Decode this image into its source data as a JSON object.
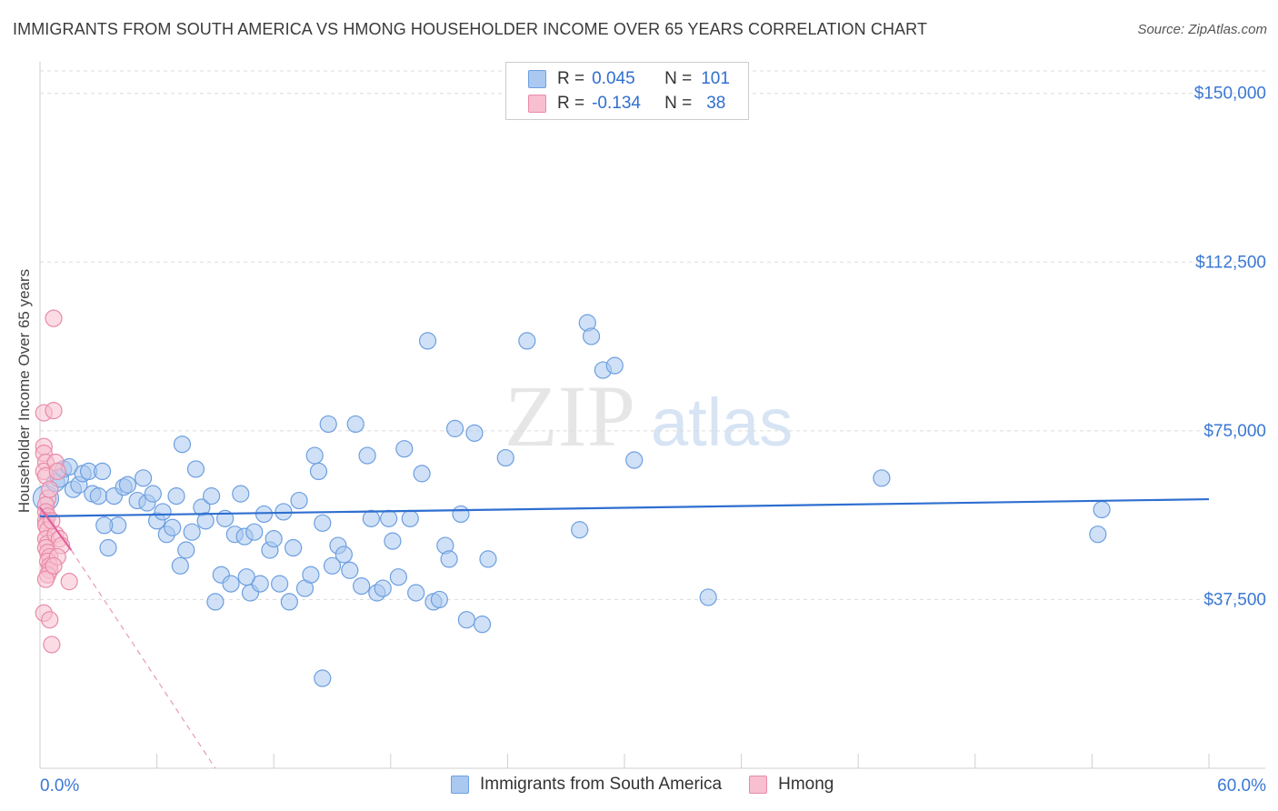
{
  "header": {
    "title": "IMMIGRANTS FROM SOUTH AMERICA VS HMONG HOUSEHOLDER INCOME OVER 65 YEARS CORRELATION CHART",
    "source": "Source: ZipAtlas.com"
  },
  "watermark": {
    "zip": "ZIP",
    "atlas": "atlas"
  },
  "legend": {
    "rows": [
      {
        "r_label": "R =",
        "r_value": "0.045",
        "n_label": "N =",
        "n_value": "101",
        "color": "#aac8f0",
        "border": "#6d9fe0"
      },
      {
        "r_label": "R =",
        "r_value": "-0.134",
        "n_label": "N =",
        "n_value": "38",
        "color": "#f7bfd0",
        "border": "#e98aa8"
      }
    ]
  },
  "bottom_legend": {
    "items": [
      {
        "label": "Immigrants from South America",
        "color": "#aac8f0",
        "border": "#6d9fe0"
      },
      {
        "label": "Hmong",
        "color": "#f7bfd0",
        "border": "#e98aa8"
      }
    ]
  },
  "chart_data": {
    "type": "scatter",
    "title": "IMMIGRANTS FROM SOUTH AMERICA VS HMONG HOUSEHOLDER INCOME OVER 65 YEARS CORRELATION CHART",
    "xlabel": "",
    "ylabel": "Householder Income Over 65 years",
    "xlim": [
      0,
      60
    ],
    "ylim": [
      0,
      155000
    ],
    "x_tick_labels": [
      "0.0%",
      "60.0%"
    ],
    "y_ticks": [
      37500,
      75000,
      112500,
      150000
    ],
    "y_tick_labels": [
      "$37,500",
      "$75,000",
      "$112,500",
      "$150,000"
    ],
    "grid": true,
    "series": [
      {
        "name": "Immigrants from South America",
        "color": "#aac8f0",
        "stroke": "#6d9fe0",
        "trend": {
          "x": [
            0,
            60
          ],
          "y": [
            56000,
            59800
          ],
          "color": "#2f6fd0",
          "style": "solid"
        },
        "points": [
          [
            0.3,
            60000,
            14
          ],
          [
            0.8,
            63500,
            10
          ],
          [
            1.0,
            64500,
            10
          ],
          [
            1.2,
            66500,
            9
          ],
          [
            1.5,
            67000,
            9
          ],
          [
            1.7,
            62000,
            9
          ],
          [
            2.0,
            63000,
            9
          ],
          [
            2.2,
            65500,
            9
          ],
          [
            2.5,
            66000,
            9
          ],
          [
            2.7,
            61000,
            9
          ],
          [
            3.0,
            60500,
            9
          ],
          [
            3.2,
            66000,
            9
          ],
          [
            3.5,
            49000,
            9
          ],
          [
            3.8,
            60500,
            9
          ],
          [
            4.0,
            54000,
            9
          ],
          [
            4.3,
            62500,
            9
          ],
          [
            4.5,
            63000,
            9
          ],
          [
            5.0,
            59500,
            9
          ],
          [
            5.3,
            64500,
            9
          ],
          [
            5.5,
            59000,
            9
          ],
          [
            5.8,
            61000,
            9
          ],
          [
            6.0,
            55000,
            9
          ],
          [
            6.3,
            57000,
            9
          ],
          [
            6.5,
            52000,
            9
          ],
          [
            6.8,
            53500,
            9
          ],
          [
            7.0,
            60500,
            9
          ],
          [
            7.3,
            72000,
            9
          ],
          [
            7.5,
            48500,
            9
          ],
          [
            7.8,
            52500,
            9
          ],
          [
            8.0,
            66500,
            9
          ],
          [
            8.3,
            58000,
            9
          ],
          [
            8.5,
            55000,
            9
          ],
          [
            8.8,
            60500,
            9
          ],
          [
            9.0,
            37000,
            9
          ],
          [
            9.3,
            43000,
            9
          ],
          [
            9.5,
            55500,
            9
          ],
          [
            9.8,
            41000,
            9
          ],
          [
            10.0,
            52000,
            9
          ],
          [
            10.3,
            61000,
            9
          ],
          [
            10.5,
            51500,
            9
          ],
          [
            10.8,
            39000,
            9
          ],
          [
            11.0,
            52500,
            9
          ],
          [
            11.3,
            41000,
            9
          ],
          [
            11.5,
            56500,
            9
          ],
          [
            11.8,
            48500,
            9
          ],
          [
            12.0,
            51000,
            9
          ],
          [
            12.3,
            41000,
            9
          ],
          [
            12.5,
            57000,
            9
          ],
          [
            12.8,
            37000,
            9
          ],
          [
            13.0,
            49000,
            9
          ],
          [
            13.3,
            59500,
            9
          ],
          [
            13.6,
            40000,
            9
          ],
          [
            13.9,
            43000,
            9
          ],
          [
            14.1,
            69500,
            9
          ],
          [
            14.3,
            66000,
            9
          ],
          [
            14.5,
            54500,
            9
          ],
          [
            14.8,
            76500,
            9
          ],
          [
            15.0,
            45000,
            9
          ],
          [
            15.3,
            49500,
            9
          ],
          [
            15.6,
            47500,
            9
          ],
          [
            15.9,
            44000,
            9
          ],
          [
            16.2,
            76500,
            9
          ],
          [
            16.5,
            40500,
            9
          ],
          [
            16.8,
            69500,
            9
          ],
          [
            17.0,
            55500,
            9
          ],
          [
            17.3,
            39000,
            9
          ],
          [
            17.6,
            40000,
            9
          ],
          [
            17.9,
            55500,
            9
          ],
          [
            18.1,
            50500,
            9
          ],
          [
            18.4,
            42500,
            9
          ],
          [
            18.7,
            71000,
            9
          ],
          [
            19.0,
            55500,
            9
          ],
          [
            19.3,
            39000,
            9
          ],
          [
            19.6,
            65500,
            9
          ],
          [
            19.9,
            95000,
            9
          ],
          [
            20.2,
            37000,
            9
          ],
          [
            20.5,
            37500,
            9
          ],
          [
            20.8,
            49500,
            9
          ],
          [
            21.0,
            46500,
            9
          ],
          [
            21.3,
            75500,
            9
          ],
          [
            21.6,
            56500,
            9
          ],
          [
            21.9,
            33000,
            9
          ],
          [
            22.3,
            74500,
            9
          ],
          [
            22.7,
            32000,
            9
          ],
          [
            23.0,
            46500,
            9
          ],
          [
            14.5,
            20000,
            9
          ],
          [
            25.0,
            95000,
            9
          ],
          [
            28.1,
            99000,
            9
          ],
          [
            28.3,
            96000,
            9
          ],
          [
            28.9,
            88500,
            9
          ],
          [
            29.5,
            89500,
            9
          ],
          [
            30.5,
            68500,
            9
          ],
          [
            23.9,
            69000,
            9
          ],
          [
            27.7,
            53000,
            9
          ],
          [
            34.3,
            38000,
            9
          ],
          [
            43.2,
            64500,
            9
          ],
          [
            54.3,
            52000,
            9
          ],
          [
            54.5,
            57500,
            9
          ],
          [
            7.2,
            45000,
            9
          ],
          [
            10.6,
            42500,
            9
          ],
          [
            3.3,
            54000,
            9
          ]
        ]
      },
      {
        "name": "Hmong",
        "color": "#f7bfd0",
        "stroke": "#e98aa8",
        "trend": {
          "x": [
            0,
            1.6
          ],
          "y": [
            58000,
            48500
          ],
          "dash_to": [
            9,
            0
          ],
          "color": "#e0609a",
          "style": "solid-then-dashed"
        },
        "points": [
          [
            0.2,
            79000,
            9
          ],
          [
            0.2,
            71500,
            9
          ],
          [
            0.2,
            70000,
            9
          ],
          [
            0.3,
            68000,
            9
          ],
          [
            0.2,
            66000,
            9
          ],
          [
            0.3,
            65000,
            9
          ],
          [
            0.4,
            60000,
            9
          ],
          [
            0.3,
            58500,
            9
          ],
          [
            0.3,
            57000,
            9
          ],
          [
            0.4,
            56000,
            9
          ],
          [
            0.3,
            55000,
            9
          ],
          [
            0.3,
            54000,
            9
          ],
          [
            0.4,
            53000,
            9
          ],
          [
            0.3,
            51000,
            9
          ],
          [
            0.4,
            50000,
            9
          ],
          [
            0.3,
            49000,
            9
          ],
          [
            0.4,
            48000,
            9
          ],
          [
            0.5,
            47000,
            9
          ],
          [
            0.4,
            46000,
            9
          ],
          [
            0.5,
            45000,
            9
          ],
          [
            0.5,
            44000,
            9
          ],
          [
            0.4,
            43000,
            9
          ],
          [
            0.3,
            42000,
            9
          ],
          [
            0.2,
            34500,
            9
          ],
          [
            0.5,
            33000,
            9
          ],
          [
            0.6,
            27500,
            9
          ],
          [
            0.7,
            100000,
            9
          ],
          [
            0.7,
            79500,
            9
          ],
          [
            0.8,
            68000,
            9
          ],
          [
            0.9,
            66000,
            9
          ],
          [
            0.8,
            52000,
            9
          ],
          [
            1.0,
            51000,
            9
          ],
          [
            1.1,
            49500,
            9
          ],
          [
            0.9,
            47000,
            9
          ],
          [
            0.7,
            45000,
            9
          ],
          [
            0.6,
            55000,
            9
          ],
          [
            0.5,
            62000,
            9
          ],
          [
            1.5,
            41500,
            9
          ]
        ]
      }
    ]
  }
}
